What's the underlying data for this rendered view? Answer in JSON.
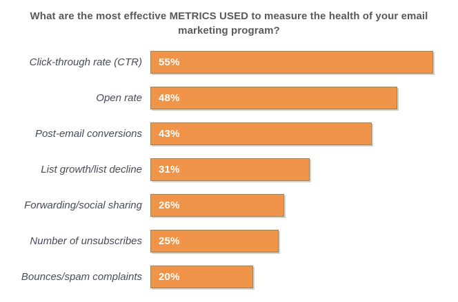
{
  "chart_data": {
    "type": "bar",
    "orientation": "horizontal",
    "title": "What are the most effective METRICS USED to measure the health of your email marketing program?",
    "categories": [
      "Click-through rate (CTR)",
      "Open rate",
      "Post-email conversions",
      "List growth/list decline",
      "Forwarding/social sharing",
      "Number of unsubscribes",
      "Bounces/spam complaints"
    ],
    "values": [
      55,
      48,
      43,
      31,
      26,
      25,
      20
    ],
    "value_suffix": "%",
    "xlabel": "",
    "ylabel": "",
    "xlim": [
      0,
      57
    ],
    "grid": false,
    "legend": "none",
    "data_labels": "inside-start",
    "bar_color": "#F0944A",
    "bar_border_color": "#A28059",
    "category_label_color": "#474B59",
    "value_label_color": "#FFFFFF",
    "title_color": "#58595B"
  }
}
